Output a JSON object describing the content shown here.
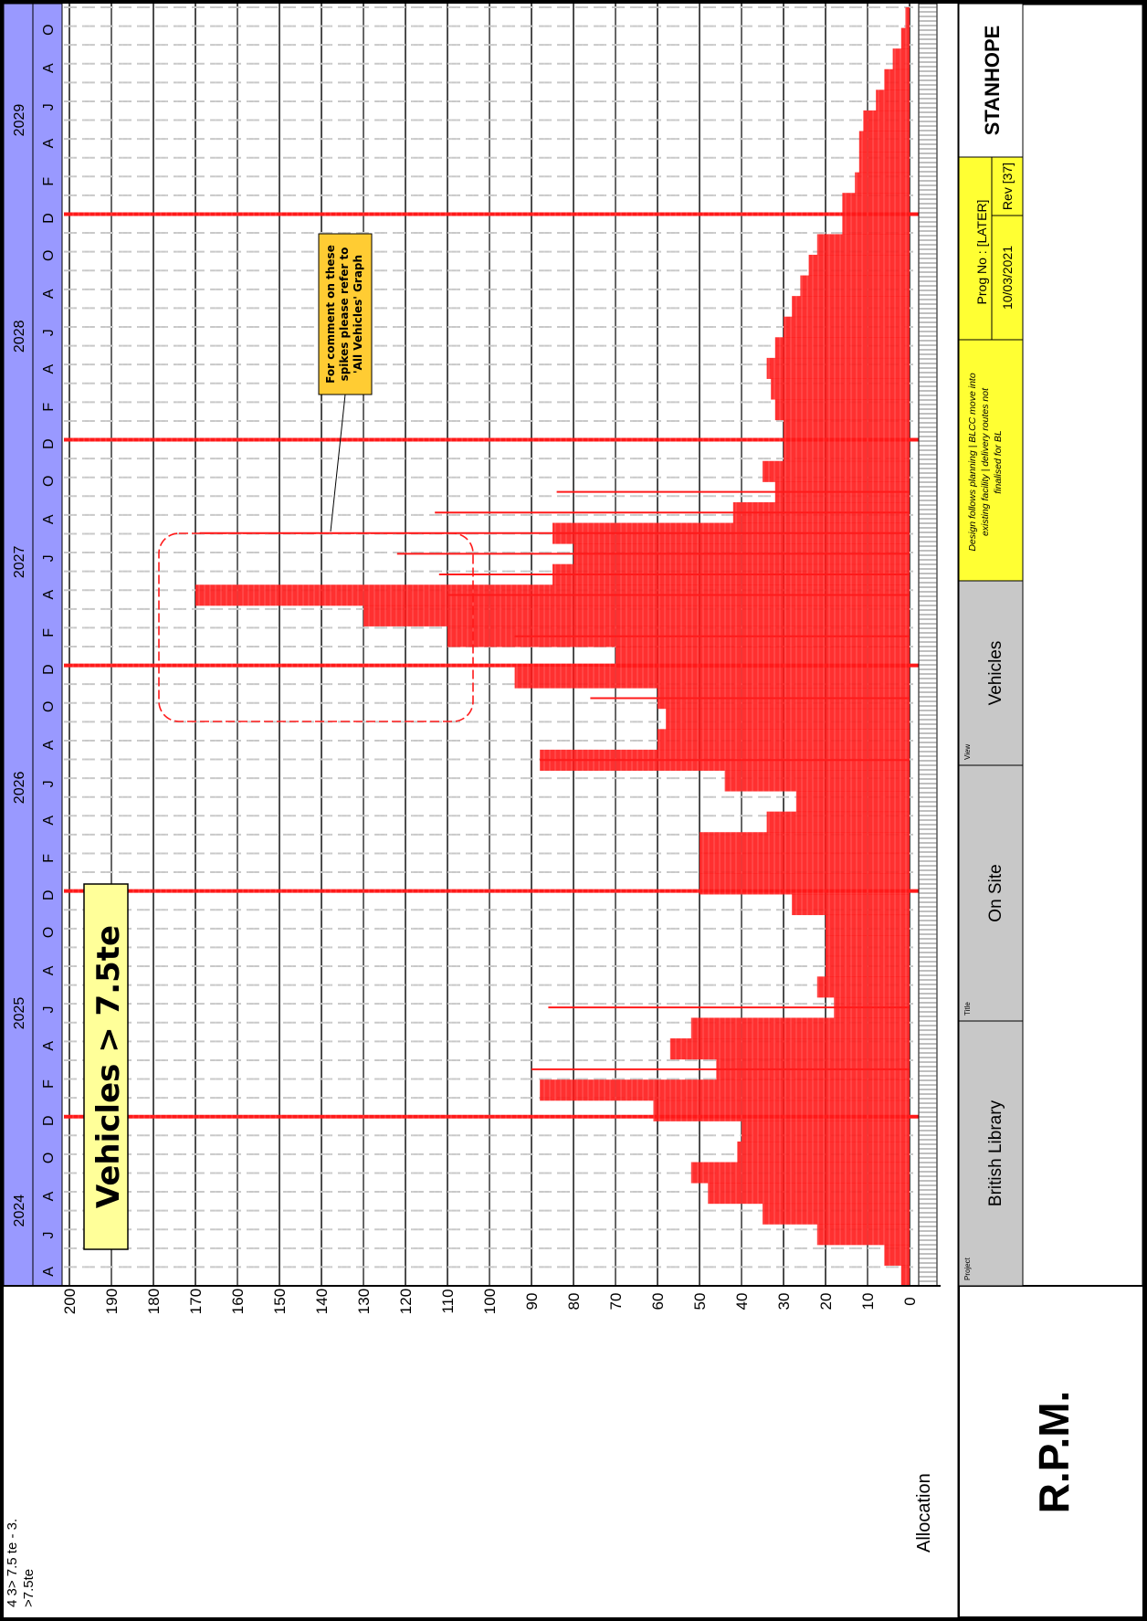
{
  "title_box": {
    "text": "Vehicles > 7.5te"
  },
  "callout": {
    "text": "For comment on these spikes please refer to 'All Vehicles' Graph"
  },
  "legend": {
    "line1": "4 3> 7.5 te - 3.",
    "line2": ">7.5te"
  },
  "allocation_label": "Allocation",
  "title_block": {
    "logo": "R.P.M.",
    "project_caption": "Project",
    "project": "British Library",
    "title_caption": "Title",
    "title": "On Site",
    "view_caption": "View",
    "view": "Vehicles",
    "note": "Design follows planning | BLCC move into existing facility | delivery routes not finalised for BL",
    "prog_no": "Prog No : [LATER]",
    "date": "10/03/2021",
    "rev": "Rev [37]",
    "company": "STANHOPE"
  },
  "colors": {
    "bars": "#ff1a1a",
    "header": "#9999ff",
    "title_box": "#ffff99",
    "callout": "#ffcc33",
    "note_box": "#ffff33",
    "grey": "#c8c8c8"
  },
  "chart_data": {
    "type": "bar",
    "orientation": "rotated-90",
    "ylim": [
      0,
      200
    ],
    "y_ticks": [
      0,
      10,
      20,
      30,
      40,
      50,
      60,
      70,
      80,
      90,
      100,
      110,
      120,
      130,
      140,
      150,
      160,
      170,
      180,
      190,
      200
    ],
    "years": [
      "2024",
      "2025",
      "2026",
      "2027",
      "2028",
      "2029"
    ],
    "month_labels": [
      "A",
      "J",
      "A",
      "O",
      "D",
      "F",
      "A",
      "J",
      "A",
      "O",
      "D",
      "F",
      "A",
      "J",
      "A",
      "O",
      "D",
      "F",
      "A",
      "J",
      "A",
      "O",
      "D",
      "F",
      "A",
      "J",
      "A",
      "O",
      "D",
      "F",
      "A",
      "J",
      "A",
      "O"
    ],
    "year_start_month_index": [
      0,
      9,
      21,
      33,
      45,
      57
    ],
    "year_end_month_index": [
      8,
      20,
      32,
      44,
      56,
      67
    ],
    "series": [
      {
        "values": [
          2,
          6,
          22,
          35,
          48,
          52,
          41,
          40,
          61,
          88,
          46,
          57,
          52,
          18,
          22,
          20,
          20,
          20,
          28,
          50,
          50,
          50,
          34,
          27,
          44,
          88,
          60,
          58,
          60,
          94,
          70,
          110,
          130,
          170,
          85,
          80,
          85,
          42,
          32,
          35,
          30,
          30,
          32,
          33,
          34,
          32,
          30,
          28,
          26,
          24,
          22,
          16,
          16,
          13,
          12,
          12,
          11,
          8,
          6,
          4,
          2,
          1
        ]
      }
    ],
    "spikes": [
      {
        "x": 10,
        "value": 90
      },
      {
        "x": 13,
        "value": 86
      },
      {
        "x": 25,
        "value": 88
      },
      {
        "x": 28,
        "value": 76
      },
      {
        "x": 31,
        "value": 94
      },
      {
        "x": 33,
        "value": 110
      },
      {
        "x": 34,
        "value": 112
      },
      {
        "x": 35,
        "value": 122
      },
      {
        "x": 36,
        "value": 169
      },
      {
        "x": 37,
        "value": 113
      },
      {
        "x": 38,
        "value": 84
      }
    ]
  }
}
